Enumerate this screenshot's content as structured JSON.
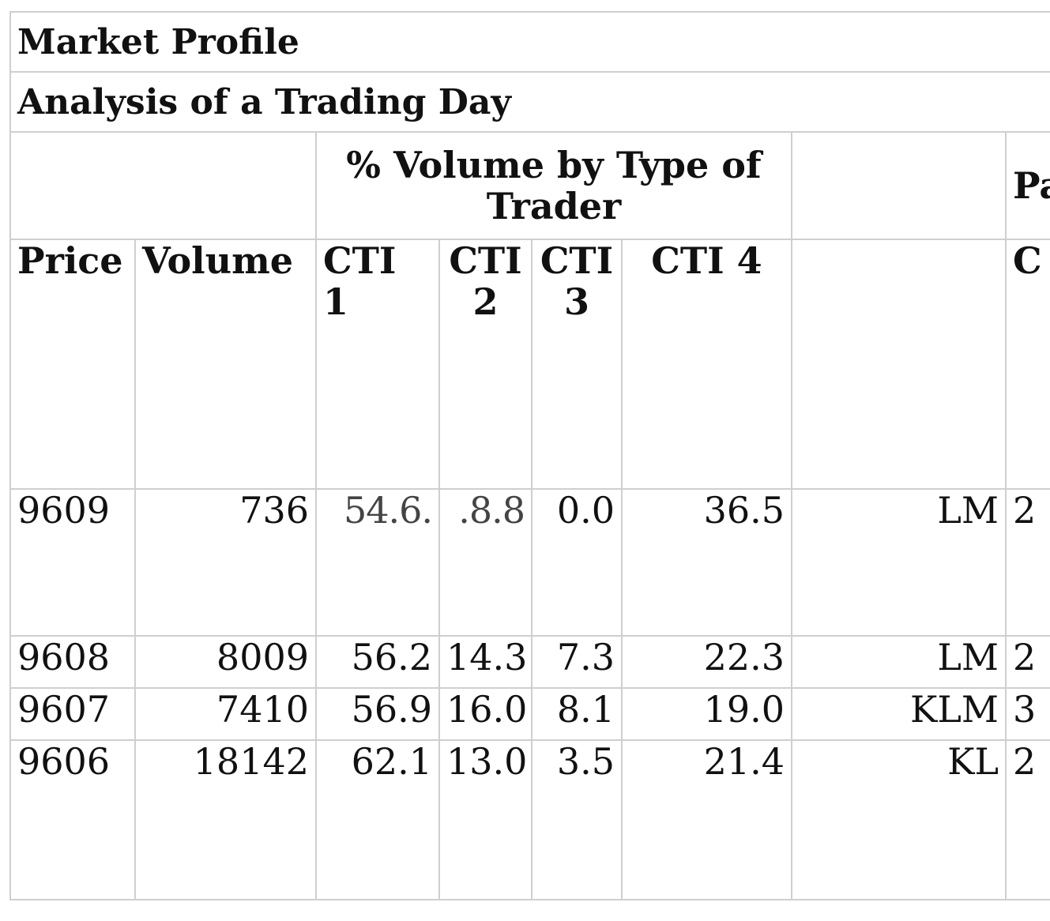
{
  "table": {
    "title": "Market Profile",
    "subtitle": "Analysis of a Trading Day",
    "group_header": "% Volume by Type of Trader",
    "group_header_right_clip": "Pa",
    "columns": [
      "Price",
      "Volume",
      "CTI 1",
      "CTI 2",
      "CTI 3",
      "CTI 4",
      "",
      "C"
    ],
    "rows": [
      {
        "price": "9609",
        "volume": "736",
        "cti1": "54.6.",
        "cti2": ".8.8",
        "cti3": "0.0",
        "cti4": "36.5",
        "code": "LM",
        "clip": "2"
      },
      {
        "price": "9608",
        "volume": "8009",
        "cti1": "56.2",
        "cti2": "14.3",
        "cti3": "7.3",
        "cti4": "22.3",
        "code": "LM",
        "clip": "2"
      },
      {
        "price": "9607",
        "volume": "7410",
        "cti1": "56.9",
        "cti2": "16.0",
        "cti3": "8.1",
        "cti4": "19.0",
        "code": "KLM",
        "clip": "3"
      },
      {
        "price": "9606",
        "volume": "18142",
        "cti1": "62.1",
        "cti2": "13.0",
        "cti3": "3.5",
        "cti4": "21.4",
        "code": "KL",
        "clip": "2"
      }
    ]
  }
}
